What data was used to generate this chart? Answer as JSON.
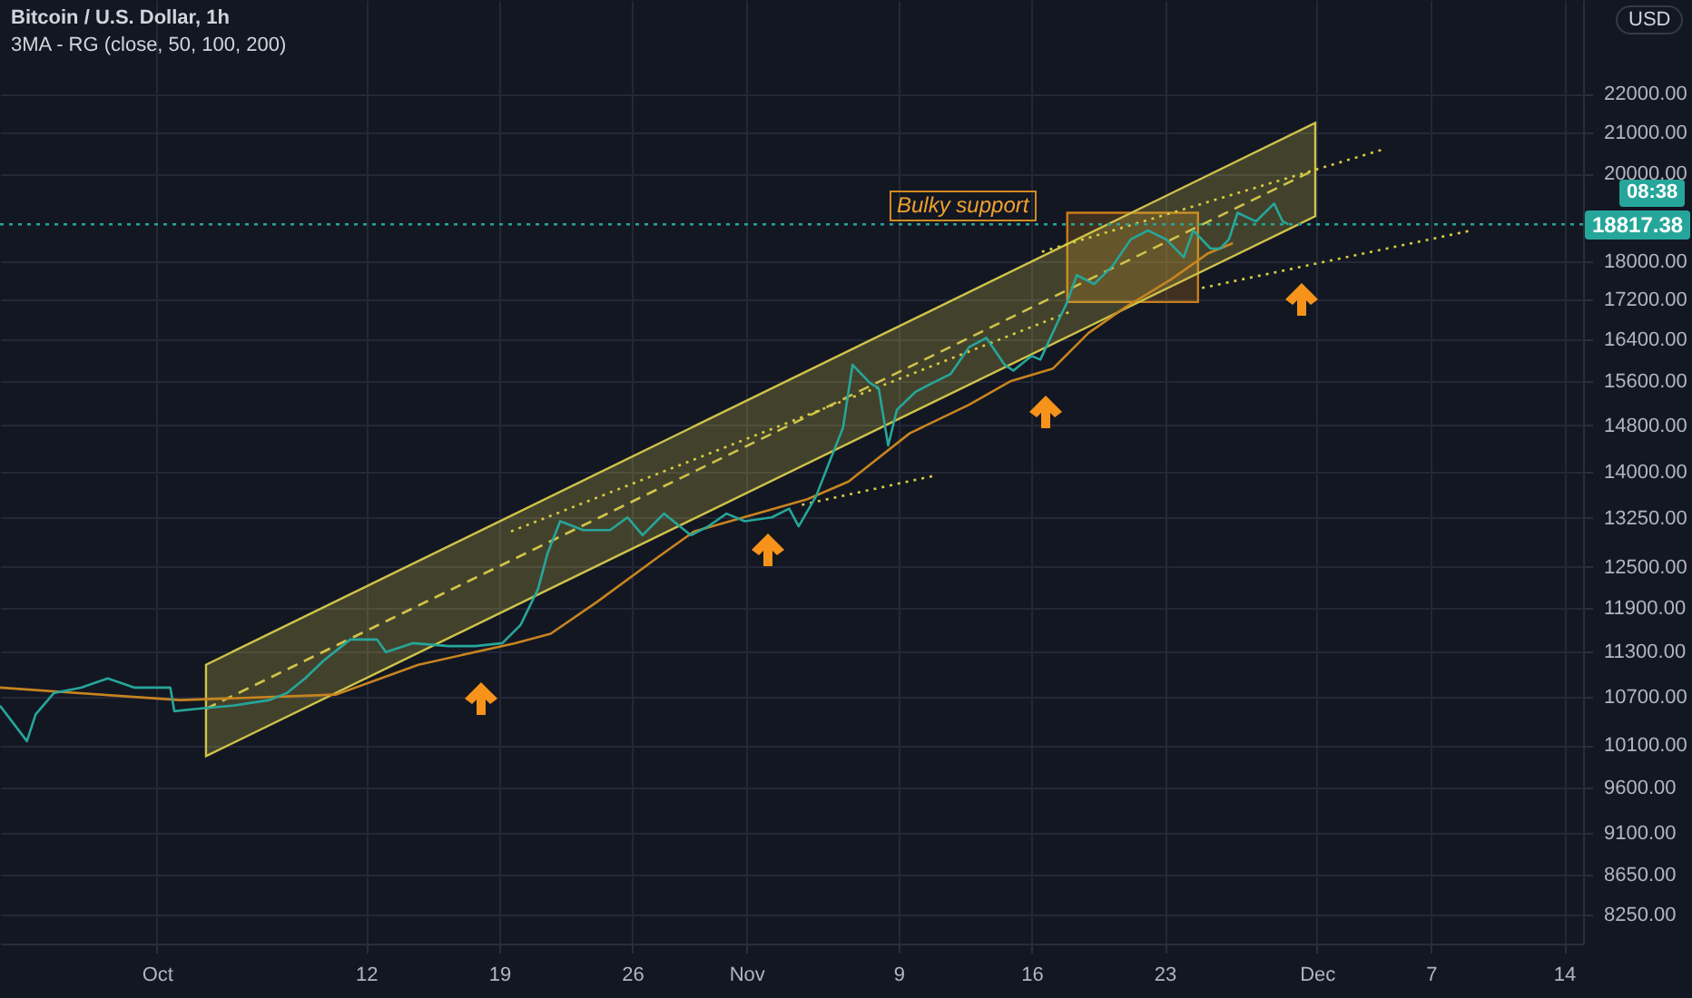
{
  "chart_data": {
    "type": "line",
    "title": "Bitcoin / U.S. Dollar, 1h",
    "subtitle": "3MA - RG (close, 50, 100, 200)",
    "log": "y",
    "grid": true,
    "marker": "none",
    "xlim": [
      "--09-22T18:00",
      "--12-15T00:00"
    ],
    "xticks": [
      {
        "value": "--10-01",
        "label": "Oct"
      },
      {
        "value": "--10-12",
        "label": "12"
      },
      {
        "value": "--10-19",
        "label": "19"
      },
      {
        "value": "--10-26",
        "label": "26"
      },
      {
        "value": "--11-01",
        "label": "Nov"
      },
      {
        "value": "--11-09",
        "label": "9"
      },
      {
        "value": "--11-16",
        "label": "16"
      },
      {
        "value": "--11-23",
        "label": "23"
      },
      {
        "value": "--12-01",
        "label": "Dec"
      },
      {
        "value": "--12-07",
        "label": "7"
      },
      {
        "value": "--12-14",
        "label": "14"
      }
    ],
    "ylim": [
      7970,
      24600
    ],
    "yticks": [
      {
        "value": 8250,
        "label": "8250.00"
      },
      {
        "value": 8650,
        "label": "8650.00"
      },
      {
        "value": 9100,
        "label": "9100.00"
      },
      {
        "value": 9600,
        "label": "9600.00"
      },
      {
        "value": 10100,
        "label": "10100.00"
      },
      {
        "value": 10700,
        "label": "10700.00"
      },
      {
        "value": 11300,
        "label": "11300.00"
      },
      {
        "value": 11900,
        "label": "11900.00"
      },
      {
        "value": 12500,
        "label": "12500.00"
      },
      {
        "value": 13250,
        "label": "13250.00"
      },
      {
        "value": 14000,
        "label": "14000.00"
      },
      {
        "value": 14800,
        "label": "14800.00"
      },
      {
        "value": 15600,
        "label": "15600.00"
      },
      {
        "value": 16400,
        "label": "16400.00"
      },
      {
        "value": 17200,
        "label": "17200.00"
      },
      {
        "value": 18000,
        "label": "18000.00"
      },
      {
        "value": 20000,
        "label": "20000.00"
      },
      {
        "value": 21000,
        "label": "21000.00"
      },
      {
        "value": 22000,
        "label": "22000.00"
      }
    ],
    "series": [
      {
        "type": "line",
        "line_style": "solid",
        "color": "#c77d1a",
        "x": [
          "--11-17T21:00",
          "--11-24T18:00"
        ],
        "values": [
          null,
          null
        ],
        "lower": [
          17150,
          17150
        ],
        "upper": [
          19080,
          19080
        ]
      },
      {
        "type": "line",
        "line_style": "dashed",
        "color": "#cfc34a",
        "x": [
          "--10-03T14:00",
          "--11-30T22:00"
        ],
        "values": [
          10550,
          20090
        ],
        "lower": [
          9970,
          19000
        ],
        "upper": [
          11120,
          21240
        ]
      },
      {
        "type": "line",
        "line_style": "dotted",
        "color": "#d9cc3f",
        "x": [
          "--11-16T13:00",
          "--12-04T10:00"
        ],
        "values": [
          18210,
          20570
        ]
      },
      {
        "type": "line",
        "line_style": "dotted",
        "color": "#d9cc3f",
        "x": [
          "--11-24T23:00",
          "--12-09T03:00"
        ],
        "values": [
          17440,
          18680
        ]
      },
      {
        "type": "line",
        "line_style": "dotted",
        "color": "#d9cc3f",
        "x": [
          "--10-19T15:00",
          "--11-18T02:00"
        ],
        "values": [
          13040,
          16960
        ]
      },
      {
        "type": "line",
        "line_style": "dotted",
        "color": "#d9cc3f",
        "x": [
          "--11-03T22:00",
          "--11-10T19:00"
        ],
        "values": [
          13460,
          13930
        ]
      },
      {
        "type": "line",
        "line_style": "solid",
        "color": "#c8841f",
        "x": [
          "--09-22T18:00",
          "--10-02T05:00",
          "--10-10T10:00",
          "--10-14T18:00",
          "--10-19T20:00",
          "--10-21T17:00",
          "--10-24T04:00",
          "--10-27T09:00",
          "--10-29T06:00",
          "--11-04T05:00",
          "--11-06T09:00",
          "--11-09T14:00",
          "--11-12T17:00",
          "--11-14T21:00",
          "--11-17T03:00",
          "--11-19T00:00",
          "--11-20T22:00",
          "--11-23T09:00",
          "--11-25T06:00",
          "--11-26T14:00"
        ],
        "values": [
          10820,
          10660,
          10730,
          11120,
          11410,
          11540,
          11990,
          12650,
          13040,
          13550,
          13840,
          14660,
          15170,
          15600,
          15840,
          16530,
          17040,
          17630,
          18170,
          18400
        ]
      },
      {
        "type": "line",
        "line_style": "solid",
        "color": "#26a69a",
        "x": [
          "--09-22T18:00",
          "--09-24T04:00",
          "--09-24T15:00",
          "--09-25T14:00",
          "--09-27T00:00",
          "--09-28T10:00",
          "--09-29T20:00",
          "--10-01T17:00",
          "--10-01T22:00",
          "--10-03T03:00",
          "--10-05T00:00",
          "--10-06T22:00",
          "--10-07T20:00",
          "--10-08T19:00",
          "--10-09T18:00",
          "--10-11T04:00",
          "--10-12T14:00",
          "--10-13T01:00",
          "--10-14T11:00",
          "--10-16T08:00",
          "--10-17T18:00",
          "--10-19T04:00",
          "--10-20T03:00",
          "--10-21T01:00",
          "--10-21T13:00",
          "--10-22T05:00",
          "--10-23T10:00",
          "--10-24T20:00",
          "--10-25T18:00",
          "--10-26T13:00",
          "--10-27T16:00",
          "--10-29T02:00",
          "--10-30T00:00",
          "--10-30T23:00",
          "--10-31T22:00",
          "--11-02T08:00",
          "--11-03T06:00",
          "--11-03T18:00",
          "--11-04T16:00",
          "--11-05T08:00",
          "--11-06T02:00",
          "--11-06T14:00",
          "--11-07T12:00",
          "--11-07T23:00",
          "--11-08T11:00",
          "--11-08T22:00",
          "--11-09T21:00",
          "--11-10T19:00",
          "--11-11T18:00",
          "--11-12T17:00",
          "--11-13T15:00",
          "--11-14T14:00",
          "--11-15T01:00",
          "--11-16T00:00",
          "--11-16T11:00",
          "--11-17T10:00",
          "--11-17T21:00",
          "--11-18T09:00",
          "--11-19T07:00",
          "--11-20T06:00",
          "--11-21T05:00",
          "--11-22T03:00",
          "--11-23T02:00",
          "--11-24T00:00",
          "--11-24T12:00",
          "--11-25T10:00",
          "--11-25T22:00",
          "--11-26T09:00",
          "--11-26T20:00",
          "--11-27T19:00",
          "--11-28T18:00",
          "--11-29T05:00",
          "--11-29T12:00"
        ],
        "values": [
          10590,
          10150,
          10480,
          10750,
          10820,
          10940,
          10820,
          10820,
          10520,
          10550,
          10590,
          10660,
          10750,
          10940,
          11170,
          11460,
          11460,
          11290,
          11410,
          11370,
          11370,
          11410,
          11660,
          12170,
          12700,
          13200,
          13060,
          13060,
          13260,
          12980,
          13320,
          12980,
          13120,
          13320,
          13200,
          13260,
          13400,
          13120,
          13600,
          14140,
          14760,
          15910,
          15570,
          15470,
          14450,
          15080,
          15400,
          15570,
          15740,
          16250,
          16430,
          15910,
          15800,
          16080,
          16010,
          16780,
          17150,
          17710,
          17520,
          17900,
          18480,
          18680,
          18480,
          18090,
          18680,
          18280,
          18280,
          18480,
          19080,
          18880,
          19290,
          18880,
          18820
        ]
      }
    ],
    "ref_lines": [
      {
        "axis": "y",
        "value": 18817.38,
        "label": "18817.38",
        "color": "#26a69a",
        "line_style": "dotted"
      }
    ],
    "annotations": [
      "Bulky support",
      "USD",
      "08:38"
    ]
  }
}
